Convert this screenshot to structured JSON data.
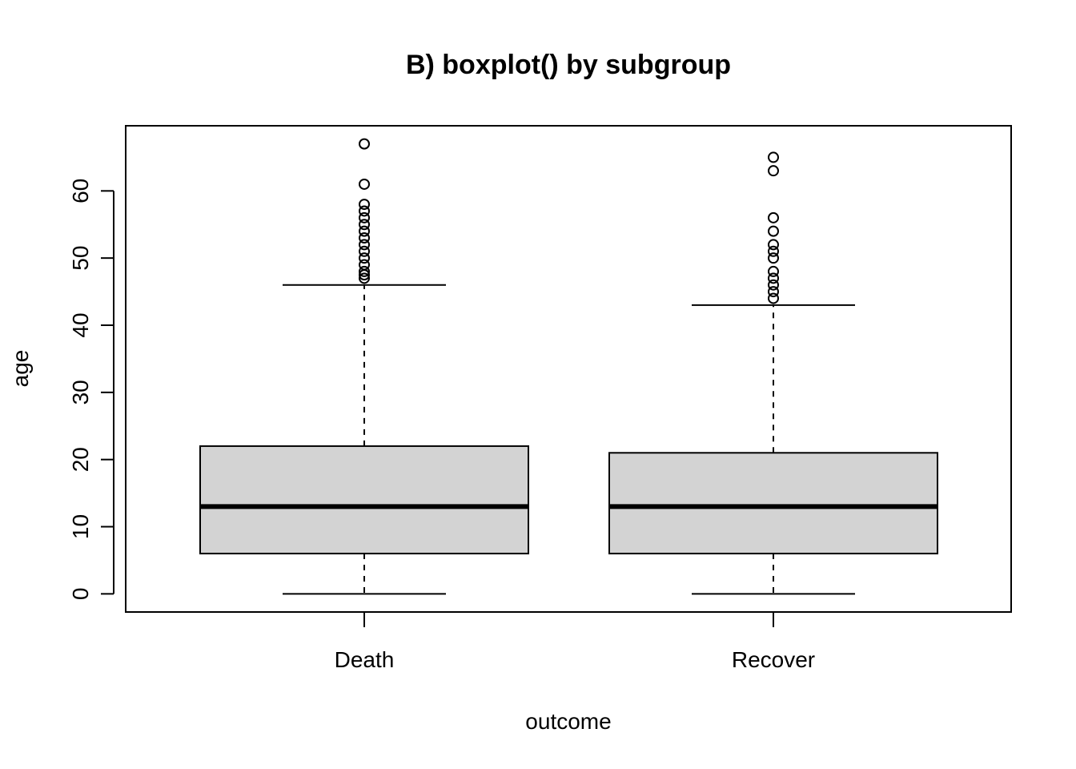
{
  "chart_data": {
    "type": "boxplot",
    "title": "B) boxplot() by subgroup",
    "xlabel": "outcome",
    "ylabel": "age",
    "ylim": [
      -2.7,
      69.7
    ],
    "yticks": [
      0,
      10,
      20,
      30,
      40,
      50,
      60
    ],
    "categories": [
      "Death",
      "Recover"
    ],
    "boxes": [
      {
        "category": "Death",
        "whisker_low": 0,
        "q1": 6,
        "median": 13,
        "q3": 22,
        "whisker_high": 46,
        "outliers": [
          47,
          47.5,
          48,
          49,
          50,
          51,
          52,
          53,
          54,
          55,
          56,
          57,
          58,
          61,
          67
        ]
      },
      {
        "category": "Recover",
        "whisker_low": 0,
        "q1": 6,
        "median": 13,
        "q3": 21,
        "whisker_high": 43,
        "outliers": [
          44,
          45,
          46,
          47,
          48,
          50,
          51,
          52,
          54,
          56,
          63,
          65
        ]
      }
    ],
    "box_fill": "#d3d3d3",
    "grid": false,
    "legend": "none"
  }
}
